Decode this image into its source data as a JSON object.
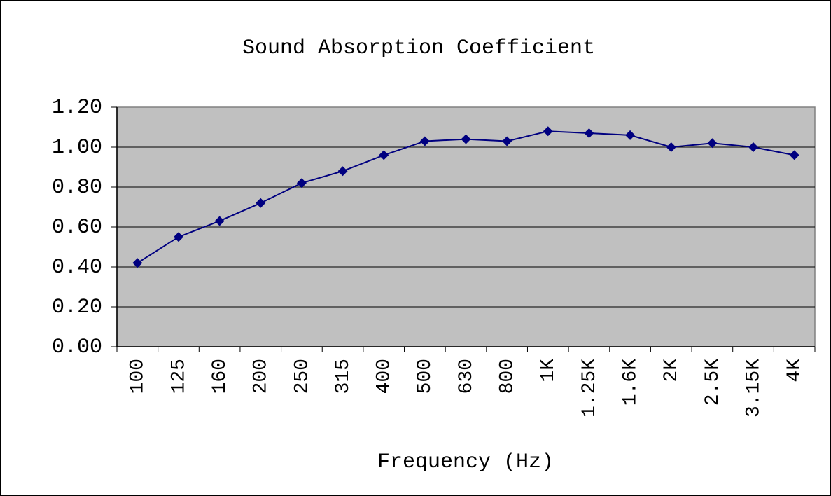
{
  "chart_data": {
    "type": "line",
    "title": "Sound Absorption Coefficient",
    "x_label": "Frequency (Hz)",
    "categories": [
      "100",
      "125",
      "160",
      "200",
      "250",
      "315",
      "400",
      "500",
      "630",
      "800",
      "1K",
      "1.25K",
      "1.6K",
      "2K",
      "2.5K",
      "3.15K",
      "4K"
    ],
    "series": [
      {
        "color": "#000080",
        "values": [
          0.42,
          0.55,
          0.63,
          0.72,
          0.82,
          0.88,
          0.96,
          1.03,
          1.04,
          1.03,
          1.08,
          1.07,
          1.06,
          1.0,
          1.02,
          1.0,
          0.96
        ]
      }
    ],
    "ylim": [
      0,
      1.2
    ],
    "yticks": [
      {
        "value": 0,
        "label": "0.00"
      },
      {
        "value": 0.2,
        "label": "0.20"
      },
      {
        "value": 0.4,
        "label": "0.40"
      },
      {
        "value": 0.6,
        "label": "0.60"
      },
      {
        "value": 0.8,
        "label": "0.80"
      },
      {
        "value": 1.0,
        "label": "1.00"
      },
      {
        "value": 1.2,
        "label": "1.20"
      }
    ],
    "grid": true,
    "plot_background": "#c0c0c0"
  }
}
